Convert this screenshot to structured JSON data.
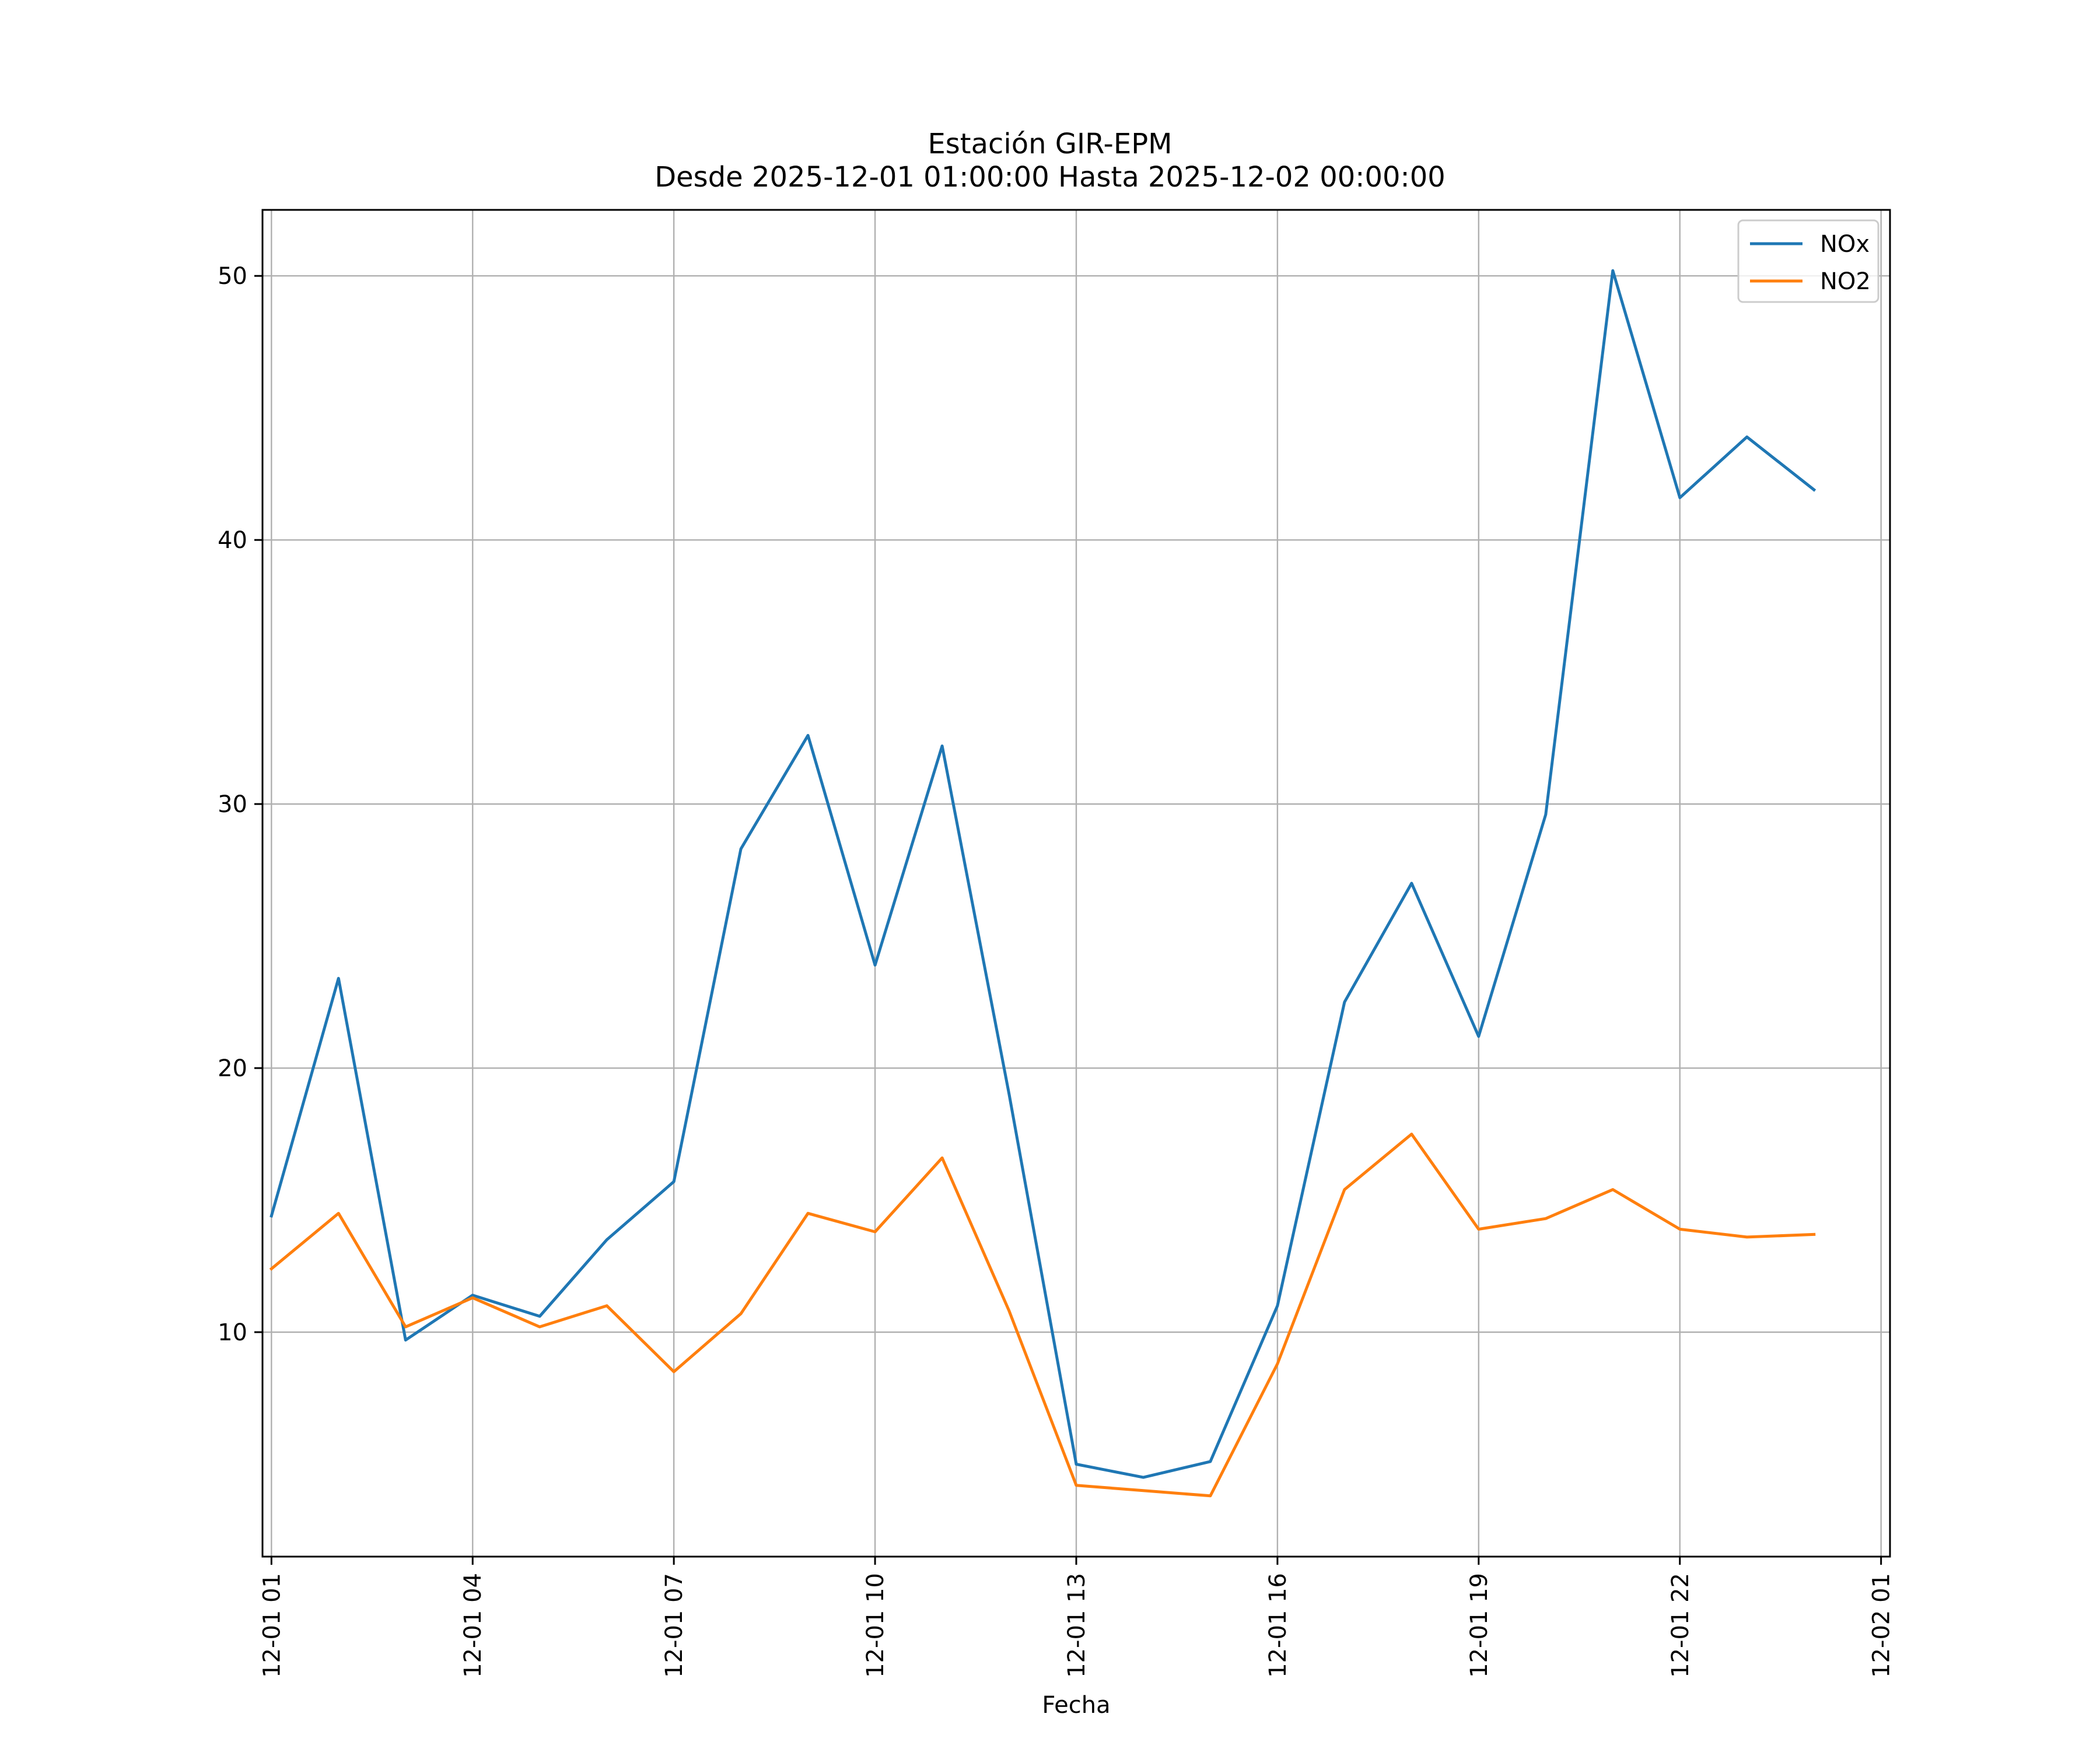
{
  "chart_data": {
    "type": "line",
    "title": "Estación GIR-EPM",
    "subtitle": "Desde 2025-12-01 01:00:00 Hasta 2025-12-02 00:00:00",
    "xlabel": "Fecha",
    "ylabel": "",
    "x": [
      "2025-12-01 01:00",
      "2025-12-01 02:00",
      "2025-12-01 03:00",
      "2025-12-01 04:00",
      "2025-12-01 05:00",
      "2025-12-01 06:00",
      "2025-12-01 07:00",
      "2025-12-01 08:00",
      "2025-12-01 09:00",
      "2025-12-01 10:00",
      "2025-12-01 11:00",
      "2025-12-01 12:00",
      "2025-12-01 13:00",
      "2025-12-01 14:00",
      "2025-12-01 15:00",
      "2025-12-01 16:00",
      "2025-12-01 17:00",
      "2025-12-01 18:00",
      "2025-12-01 19:00",
      "2025-12-01 20:00",
      "2025-12-01 21:00",
      "2025-12-01 22:00",
      "2025-12-01 23:00",
      "2025-12-02 00:00"
    ],
    "xlim": [
      "2025-12-01 00:52",
      "2025-12-02 01:08"
    ],
    "xticks": [
      {
        "value": "2025-12-01 01:00",
        "label": "12-01 01"
      },
      {
        "value": "2025-12-01 04:00",
        "label": "12-01 04"
      },
      {
        "value": "2025-12-01 07:00",
        "label": "12-01 07"
      },
      {
        "value": "2025-12-01 10:00",
        "label": "12-01 10"
      },
      {
        "value": "2025-12-01 13:00",
        "label": "12-01 13"
      },
      {
        "value": "2025-12-01 16:00",
        "label": "12-01 16"
      },
      {
        "value": "2025-12-01 19:00",
        "label": "12-01 19"
      },
      {
        "value": "2025-12-01 22:00",
        "label": "12-01 22"
      },
      {
        "value": "2025-12-02 01:00",
        "label": "12-02 01"
      }
    ],
    "ylim": [
      1.5,
      52.5
    ],
    "yticks": [
      10,
      20,
      30,
      40,
      50
    ],
    "grid": true,
    "legend_position": "top-right",
    "series": [
      {
        "name": "NOx",
        "color": "#1f77b4",
        "values": [
          14.4,
          23.4,
          9.7,
          11.4,
          10.6,
          13.5,
          15.7,
          28.3,
          32.6,
          23.9,
          32.2,
          19.0,
          5.0,
          4.5,
          5.1,
          11.0,
          22.5,
          27.0,
          21.2,
          29.6,
          50.2,
          41.6,
          43.9,
          41.9
        ]
      },
      {
        "name": "NO2",
        "color": "#ff7f0e",
        "values": [
          12.4,
          14.5,
          10.2,
          11.3,
          10.2,
          11.0,
          8.5,
          10.7,
          14.5,
          13.8,
          16.6,
          10.8,
          4.2,
          4.0,
          3.8,
          8.8,
          15.4,
          17.5,
          13.9,
          14.3,
          15.4,
          13.9,
          13.6,
          13.7
        ]
      }
    ]
  }
}
